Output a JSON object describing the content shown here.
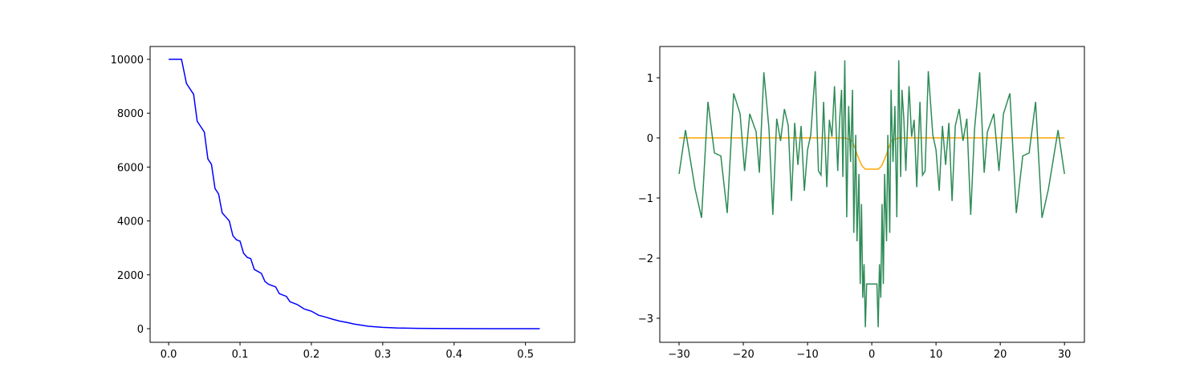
{
  "chart_data": [
    {
      "type": "line",
      "x": [
        0,
        0.018,
        0.025,
        0.03,
        0.035,
        0.04,
        0.045,
        0.05,
        0.055,
        0.06,
        0.065,
        0.07,
        0.075,
        0.08,
        0.085,
        0.09,
        0.095,
        0.1,
        0.105,
        0.11,
        0.115,
        0.12,
        0.13,
        0.135,
        0.14,
        0.15,
        0.155,
        0.165,
        0.17,
        0.18,
        0.19,
        0.2,
        0.21,
        0.22,
        0.23,
        0.24,
        0.25,
        0.26,
        0.27,
        0.28,
        0.3,
        0.32,
        0.35,
        0.4,
        0.45,
        0.52
      ],
      "series": [
        {
          "color": "#0000ff",
          "values": [
            10000,
            10000,
            9100,
            8900,
            8700,
            7700,
            7500,
            7300,
            6300,
            6100,
            5200,
            5000,
            4300,
            4150,
            4000,
            3450,
            3300,
            3250,
            2800,
            2650,
            2600,
            2200,
            2050,
            1750,
            1650,
            1550,
            1300,
            1200,
            1000,
            900,
            730,
            650,
            500,
            430,
            350,
            280,
            230,
            170,
            130,
            90,
            50,
            25,
            10,
            3,
            1,
            0
          ]
        }
      ],
      "xlim": [
        -0.026,
        0.569
      ],
      "ylim": [
        -506,
        10476
      ],
      "xticks": [
        {
          "value": 0,
          "label": "0.0"
        },
        {
          "value": 0.1,
          "label": "0.1"
        },
        {
          "value": 0.2,
          "label": "0.2"
        },
        {
          "value": 0.3,
          "label": "0.3"
        },
        {
          "value": 0.4,
          "label": "0.4"
        },
        {
          "value": 0.5,
          "label": "0.5"
        }
      ],
      "yticks": [
        0,
        2000,
        4000,
        6000,
        8000,
        10000
      ]
    },
    {
      "type": "line",
      "x": [
        -30,
        -29,
        -27.5,
        -26.5,
        -25.5,
        -24.5,
        -23.5,
        -22.5,
        -21.5,
        -20.5,
        -19.8,
        -19,
        -18,
        -17.5,
        -16.8,
        -16,
        -15.4,
        -14.8,
        -14.2,
        -13.6,
        -13,
        -12.5,
        -12,
        -11.5,
        -11,
        -10.5,
        -10,
        -9.5,
        -8.8,
        -8.3,
        -7.9,
        -7.5,
        -7,
        -6.6,
        -6.2,
        -5.8,
        -5.3,
        -5,
        -4.7,
        -4.5,
        -4.2,
        -3.9,
        -3.6,
        -3.3,
        -3,
        -2.8,
        -2.5,
        -2.3,
        -2,
        -1.8,
        -1.6,
        -1.4,
        -1.2,
        -1,
        -0.8,
        0.8,
        1,
        1.2,
        1.4,
        1.6,
        1.8,
        2,
        2.3,
        2.5,
        2.8,
        3,
        3.3,
        3.6,
        3.9,
        4.2,
        4.5,
        4.7,
        5,
        5.3,
        5.8,
        6.2,
        6.6,
        7,
        7.5,
        7.9,
        8.3,
        8.8,
        9.5,
        10,
        10.5,
        11,
        11.5,
        12,
        12.5,
        13,
        13.6,
        14.2,
        14.8,
        15.4,
        16,
        16.8,
        17.5,
        18,
        19,
        19.8,
        20.5,
        21.5,
        22.5,
        23.5,
        24.5,
        25.5,
        26.5,
        27.5,
        29,
        30
      ],
      "series": [
        {
          "color": "#ffa500",
          "values": [
            0,
            0,
            0,
            0,
            0,
            0,
            0,
            0,
            0,
            0,
            0,
            0,
            0,
            0,
            0,
            0,
            0,
            0,
            0,
            0,
            0,
            0,
            0,
            0,
            0,
            0,
            0,
            0,
            0,
            0,
            0,
            0,
            0,
            0,
            0,
            0,
            0,
            0,
            0,
            0,
            0,
            -0.01,
            -0.02,
            -0.04,
            -0.05,
            -0.12,
            -0.2,
            -0.27,
            -0.35,
            -0.4,
            -0.45,
            -0.48,
            -0.5,
            -0.52,
            -0.52,
            -0.52,
            -0.52,
            -0.5,
            -0.48,
            -0.45,
            -0.4,
            -0.35,
            -0.27,
            -0.2,
            -0.12,
            -0.05,
            -0.04,
            -0.02,
            -0.01,
            0,
            0,
            0,
            0,
            0,
            0,
            0,
            0,
            0,
            0,
            0,
            0,
            0,
            0,
            0,
            0,
            0,
            0,
            0,
            0,
            0,
            0,
            0,
            0,
            0,
            0,
            0,
            0,
            0,
            0,
            0,
            0,
            0,
            0,
            0,
            0,
            0,
            0,
            0,
            0,
            0
          ]
        },
        {
          "color": "#2e8b57",
          "values": [
            -0.6,
            0.13,
            -0.85,
            -1.33,
            0.6,
            -0.25,
            -0.3,
            -1.25,
            0.74,
            0.4,
            -0.55,
            0.4,
            0.1,
            -0.58,
            1.09,
            0.15,
            -1.28,
            0.32,
            -0.05,
            0.48,
            0.2,
            -1.05,
            0.25,
            -0.45,
            0.2,
            -0.88,
            -0.2,
            0.05,
            1.11,
            -0.55,
            -0.62,
            0.6,
            -0.82,
            0.3,
            0.02,
            0.86,
            -0.55,
            0.3,
            0.8,
            -0.65,
            1.29,
            -1.32,
            0.53,
            -0.4,
            0.8,
            -1.58,
            0.05,
            -1.72,
            -0.6,
            -2.43,
            -1.1,
            -2.66,
            -2.1,
            -3.15,
            -2.43,
            -2.43,
            -3.15,
            -2.1,
            -2.66,
            -1.1,
            -2.43,
            -0.6,
            -1.72,
            0.05,
            -1.58,
            0.8,
            -0.4,
            0.53,
            -1.32,
            1.29,
            -0.65,
            0.8,
            0.3,
            -0.55,
            0.86,
            0.02,
            0.3,
            -0.82,
            0.6,
            -0.62,
            -0.55,
            1.11,
            0.05,
            -0.2,
            -0.88,
            0.2,
            -0.45,
            0.25,
            -1.05,
            0.2,
            0.48,
            -0.05,
            0.32,
            -1.28,
            0.15,
            1.09,
            -0.58,
            0.1,
            0.4,
            -0.55,
            0.4,
            0.74,
            -1.25,
            -0.3,
            -0.25,
            0.6,
            -1.33,
            -0.85,
            0.13,
            -0.6
          ]
        }
      ],
      "xlim": [
        -33,
        33.1
      ],
      "ylim": [
        -3.4,
        1.52
      ],
      "xticks": [
        {
          "value": -30,
          "label": "−30"
        },
        {
          "value": -20,
          "label": "−20"
        },
        {
          "value": -10,
          "label": "−10"
        },
        0,
        10,
        20,
        30
      ],
      "yticks": [
        {
          "value": -3,
          "label": "−3"
        },
        {
          "value": -2,
          "label": "−2"
        },
        {
          "value": -1,
          "label": "−1"
        },
        0,
        1
      ]
    }
  ]
}
